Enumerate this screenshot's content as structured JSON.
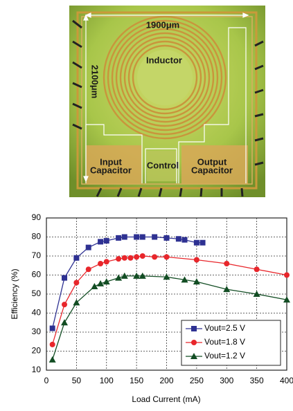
{
  "die_photo": {
    "width_label": "1900μm",
    "height_label": "2100μm",
    "inductor": "Inductor",
    "input_capacitor": [
      "Input",
      "Capacitor"
    ],
    "control": "Control",
    "output_capacitor": [
      "Output",
      "Capacitor"
    ]
  },
  "chart_data": {
    "type": "line",
    "xlabel": "Load Current (mA)",
    "ylabel": "Efficiency (%)",
    "xlim": [
      0,
      400
    ],
    "xticks": [
      0,
      50,
      100,
      150,
      200,
      250,
      300,
      350,
      400
    ],
    "ylim": [
      10,
      90
    ],
    "yticks": [
      10,
      20,
      30,
      40,
      50,
      60,
      70,
      80,
      90
    ],
    "grid": true,
    "legend": "lower right",
    "series": [
      {
        "name": "Vout=2.5 V",
        "color": "#2e3192",
        "marker": "square",
        "x": [
          10,
          30,
          50,
          70,
          90,
          100,
          120,
          130,
          150,
          160,
          180,
          200,
          220,
          230,
          250,
          260
        ],
        "values": [
          32,
          58.5,
          69,
          74.5,
          77.5,
          78,
          79.5,
          80,
          80,
          80,
          80,
          79.5,
          79,
          78.5,
          77,
          77
        ]
      },
      {
        "name": "Vout=1.8 V",
        "color": "#e8262b",
        "marker": "circle",
        "x": [
          10,
          30,
          50,
          70,
          90,
          100,
          120,
          130,
          140,
          150,
          160,
          180,
          200,
          250,
          300,
          350,
          400
        ],
        "values": [
          23.5,
          44.5,
          56,
          63,
          66,
          67,
          68.5,
          69,
          69,
          69.5,
          70,
          69.5,
          69.5,
          68,
          66,
          63,
          60
        ]
      },
      {
        "name": "Vout=1.2 V",
        "color": "#124d23",
        "marker": "triangle",
        "x": [
          10,
          30,
          50,
          80,
          90,
          100,
          120,
          130,
          150,
          160,
          200,
          230,
          250,
          300,
          350,
          400
        ],
        "values": [
          15.5,
          35,
          45.5,
          54,
          55.5,
          56.5,
          58.5,
          59.5,
          59.5,
          59.5,
          59,
          57.5,
          56.5,
          52.5,
          50,
          47
        ]
      }
    ]
  }
}
